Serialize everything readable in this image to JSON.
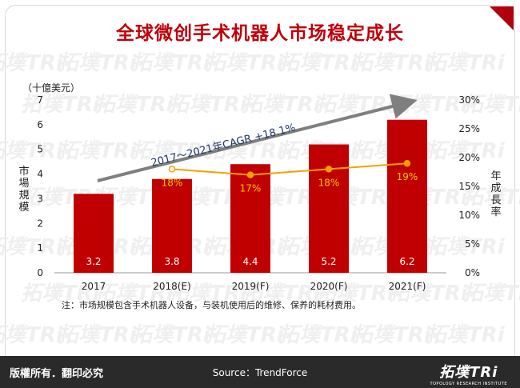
{
  "title": "全球微创手术机器人市场稳定成长",
  "unit_label": "（十億美元）",
  "y_left_title": "市場規模",
  "y_right_title": "年成長率",
  "cagr_label": "2017～2021年CAGR +18.1%",
  "note": "注：市场规模包含手术机器人设备，与装机使用后的维修、保养的耗材费用。",
  "footer": {
    "rights": "版權所有．翻印必究",
    "source": "Source：TrendForce",
    "logo_text": "拓墣TRi",
    "logo_sub": "TOPOLOGY RESEARCH INSTITUTE"
  },
  "watermark_text": "拓墣TRi",
  "colors": {
    "bar": "#c00000",
    "line": "#f5a000",
    "growth_label": "#f5c400",
    "title": "#c0000b",
    "arrow": "#7f7f7f",
    "cagr_text": "#1f3864"
  },
  "chart_data": {
    "type": "bar",
    "categories": [
      "2017",
      "2018(E)",
      "2019(F)",
      "2020(F)",
      "2021(F)"
    ],
    "series": [
      {
        "values": [
          3.2,
          3.8,
          4.4,
          5.2,
          6.2
        ]
      },
      {
        "type": "line",
        "axis": "right",
        "values": [
          null,
          18,
          17,
          18,
          19
        ]
      }
    ],
    "bar_labels": [
      "3.2",
      "3.8",
      "4.4",
      "5.2",
      "6.2"
    ],
    "line_labels": [
      "",
      "18%",
      "17%",
      "18%",
      "19%"
    ],
    "ylim": [
      0,
      7
    ],
    "y_ticks": [
      "0",
      "1",
      "2",
      "3",
      "4",
      "5",
      "6",
      "7"
    ],
    "y2lim": [
      0,
      30
    ],
    "y2_ticks": [
      "0%",
      "5%",
      "10%",
      "15%",
      "20%",
      "25%",
      "30%"
    ]
  }
}
